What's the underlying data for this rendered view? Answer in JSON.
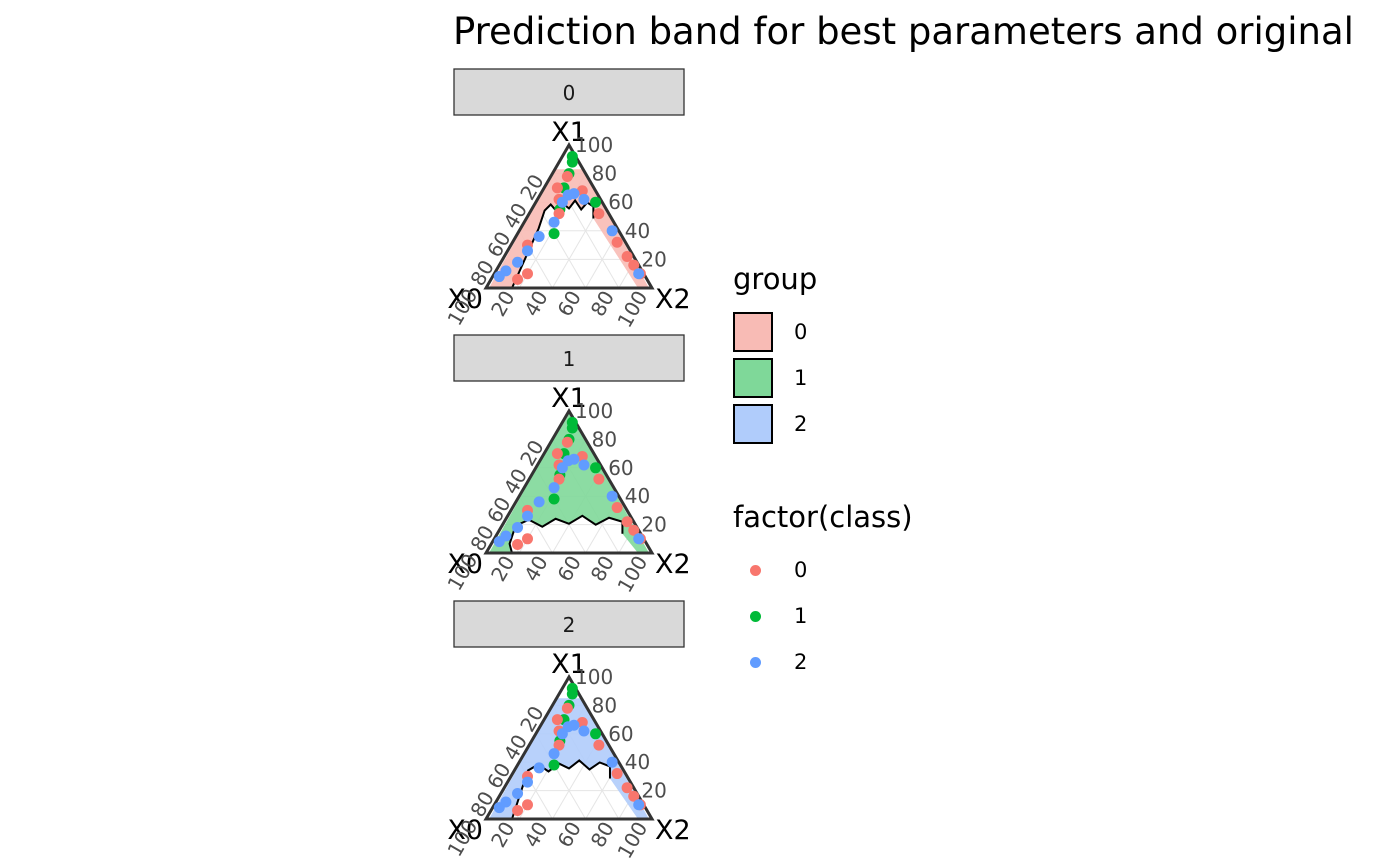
{
  "title": "Prediction band for best parameters and original",
  "chart_data": {
    "type": "scatter",
    "subtype": "ternary faceted prediction bands",
    "axes": {
      "top": "X1",
      "left": "X0",
      "right": "X2",
      "ticks": [
        "20",
        "40",
        "60",
        "80",
        "100"
      ],
      "range": [
        0,
        100
      ],
      "grid": true
    },
    "facets": [
      {
        "label": "0",
        "band_group": "0",
        "band_top": 83,
        "band_bottom": 57
      },
      {
        "label": "1",
        "band_group": "1",
        "band_top": 100,
        "band_bottom": 22
      },
      {
        "label": "2",
        "band_group": "2",
        "band_top": 85,
        "band_bottom": 37
      }
    ],
    "points": [
      {
        "class": "1",
        "x0": 2,
        "x1": 92,
        "x2": 6
      },
      {
        "class": "1",
        "x0": 4,
        "x1": 88,
        "x2": 8
      },
      {
        "class": "1",
        "x0": 10,
        "x1": 80,
        "x2": 10
      },
      {
        "class": "1",
        "x0": 18,
        "x1": 70,
        "x2": 12
      },
      {
        "class": "1",
        "x0": 28,
        "x1": 55,
        "x2": 17
      },
      {
        "class": "1",
        "x0": 40,
        "x1": 38,
        "x2": 22
      },
      {
        "class": "1",
        "x0": 4,
        "x1": 60,
        "x2": 36
      },
      {
        "class": "0",
        "x0": 12,
        "x1": 78,
        "x2": 10
      },
      {
        "class": "0",
        "x0": 22,
        "x1": 70,
        "x2": 8
      },
      {
        "class": "0",
        "x0": 25,
        "x1": 62,
        "x2": 13
      },
      {
        "class": "0",
        "x0": 30,
        "x1": 52,
        "x2": 18
      },
      {
        "class": "0",
        "x0": 8,
        "x1": 68,
        "x2": 24
      },
      {
        "class": "0",
        "x0": 6,
        "x1": 52,
        "x2": 42
      },
      {
        "class": "0",
        "x0": 5,
        "x1": 32,
        "x2": 63
      },
      {
        "class": "0",
        "x0": 4,
        "x1": 22,
        "x2": 74
      },
      {
        "class": "0",
        "x0": 3,
        "x1": 16,
        "x2": 81
      },
      {
        "class": "0",
        "x0": 2,
        "x1": 10,
        "x2": 88
      },
      {
        "class": "0",
        "x0": 70,
        "x1": 10,
        "x2": 20
      },
      {
        "class": "0",
        "x0": 78,
        "x1": 6,
        "x2": 16
      },
      {
        "class": "0",
        "x0": 60,
        "x1": 30,
        "x2": 10
      },
      {
        "class": "2",
        "x0": 18,
        "x1": 65,
        "x2": 17
      },
      {
        "class": "2",
        "x0": 14,
        "x1": 66,
        "x2": 20
      },
      {
        "class": "2",
        "x0": 24,
        "x1": 60,
        "x2": 16
      },
      {
        "class": "2",
        "x0": 10,
        "x1": 62,
        "x2": 28
      },
      {
        "class": "2",
        "x0": 50,
        "x1": 36,
        "x2": 14
      },
      {
        "class": "2",
        "x0": 62,
        "x1": 26,
        "x2": 12
      },
      {
        "class": "2",
        "x0": 72,
        "x1": 18,
        "x2": 10
      },
      {
        "class": "2",
        "x0": 82,
        "x1": 12,
        "x2": 6
      },
      {
        "class": "2",
        "x0": 88,
        "x1": 8,
        "x2": 4
      },
      {
        "class": "2",
        "x0": 4,
        "x1": 40,
        "x2": 56
      },
      {
        "class": "2",
        "x0": 3,
        "x1": 10,
        "x2": 87
      },
      {
        "class": "2",
        "x0": 36,
        "x1": 46,
        "x2": 18
      }
    ]
  },
  "legend": {
    "group": {
      "title": "group",
      "items": [
        {
          "label": "0",
          "color": "#F8BBB5"
        },
        {
          "label": "1",
          "color": "#7FD899"
        },
        {
          "label": "2",
          "color": "#B0CCFB"
        }
      ]
    },
    "class": {
      "title": "factor(class)",
      "items": [
        {
          "label": "0",
          "color": "#F8766D"
        },
        {
          "label": "1",
          "color": "#00BA38"
        },
        {
          "label": "2",
          "color": "#619CFF"
        }
      ]
    }
  },
  "colors": {
    "strip_fill": "#D9D9D9",
    "grid": "#E5E5E5",
    "tick_text": "#4D4D4D"
  }
}
